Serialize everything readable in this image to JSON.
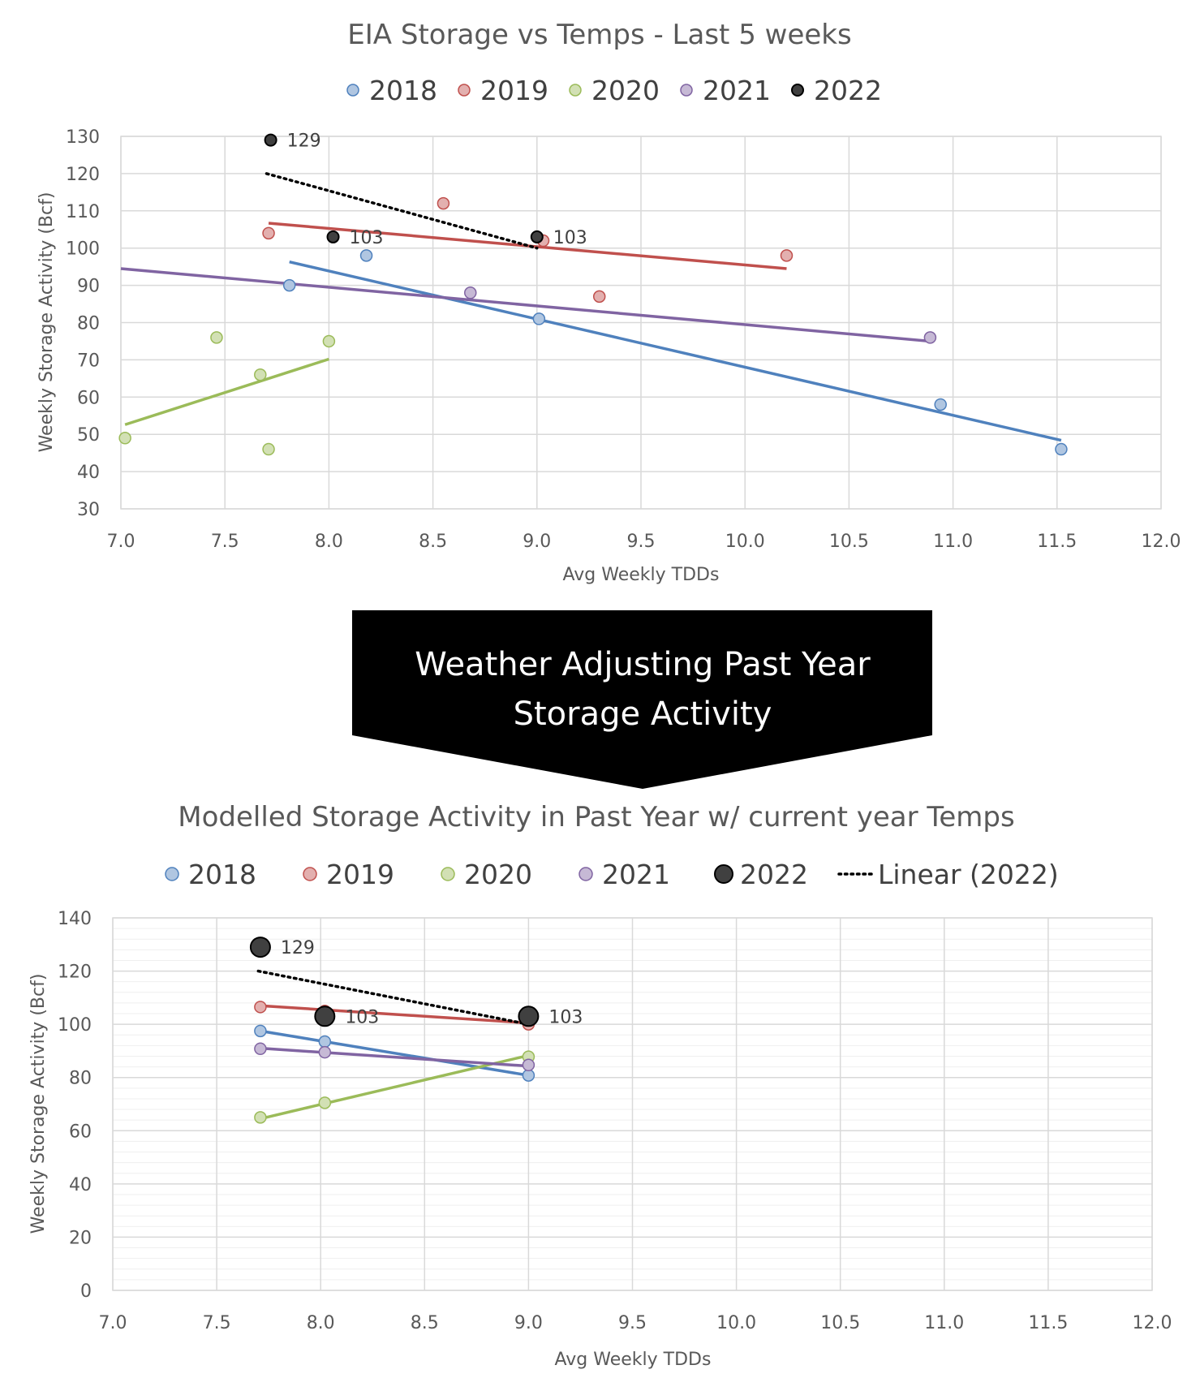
{
  "colors": {
    "2018": "#4f81bd",
    "2019": "#c0504d",
    "2020": "#9bbb59",
    "2021": "#8064a2",
    "2022": "#262626",
    "grid": "#d9d9d9",
    "minor_grid": "#efefef",
    "banner": "#000000"
  },
  "banner": {
    "line1": "Weather Adjusting Past Year",
    "line2": "Storage Activity"
  },
  "chart_data": [
    {
      "type": "scatter",
      "title": "EIA Storage vs Temps - Last 5 weeks",
      "xlabel": "Avg Weekly TDDs",
      "ylabel": "Weekly Storage  Activity (Bcf)",
      "xlim": [
        7.0,
        12.0
      ],
      "ylim": [
        30,
        130
      ],
      "x_ticks": [
        "7.0",
        "7.5",
        "8.0",
        "8.5",
        "9.0",
        "9.5",
        "10.0",
        "10.5",
        "11.0",
        "11.5",
        "12.0"
      ],
      "y_ticks": [
        "30",
        "40",
        "50",
        "60",
        "70",
        "80",
        "90",
        "100",
        "110",
        "120",
        "130"
      ],
      "grid": true,
      "legend": "top-center",
      "legend_entries": [
        "2018",
        "2019",
        "2020",
        "2021",
        "2022"
      ],
      "series": [
        {
          "name": "2018",
          "points": [
            [
              7.81,
              90
            ],
            [
              8.18,
              98
            ],
            [
              9.01,
              81
            ],
            [
              10.94,
              58
            ],
            [
              11.52,
              46
            ]
          ],
          "trend": [
            [
              7.81,
              96.3
            ],
            [
              11.52,
              48.4
            ]
          ]
        },
        {
          "name": "2019",
          "points": [
            [
              7.71,
              104
            ],
            [
              8.55,
              112
            ],
            [
              9.03,
              102
            ],
            [
              9.3,
              87
            ],
            [
              10.2,
              98
            ]
          ],
          "trend": [
            [
              7.71,
              106.7
            ],
            [
              10.2,
              94.5
            ]
          ]
        },
        {
          "name": "2020",
          "points": [
            [
              7.02,
              49
            ],
            [
              7.46,
              76
            ],
            [
              7.67,
              66
            ],
            [
              7.71,
              46
            ],
            [
              8.0,
              75
            ]
          ],
          "trend": [
            [
              7.02,
              52.6
            ],
            [
              8.0,
              70.2
            ]
          ]
        },
        {
          "name": "2021",
          "points": [
            [
              8.68,
              88
            ],
            [
              10.89,
              76
            ]
          ],
          "trend": [
            [
              7.0,
              94.5
            ],
            [
              10.89,
              75.0
            ]
          ]
        },
        {
          "name": "2022",
          "points": [
            [
              7.72,
              129
            ],
            [
              8.02,
              103
            ],
            [
              9.0,
              103
            ]
          ],
          "labels": [
            "129",
            "103",
            "103"
          ],
          "trend": [
            [
              7.7,
              120.0
            ],
            [
              9.0,
              100.0
            ]
          ],
          "trend_style": "dotted"
        }
      ]
    },
    {
      "type": "scatter",
      "title": "Modelled Storage Activity in Past Year w/ current year Temps",
      "xlabel": "Avg Weekly TDDs",
      "ylabel": "Weekly Storage  Activity (Bcf)",
      "xlim": [
        7.0,
        12.0
      ],
      "ylim": [
        0,
        140
      ],
      "x_ticks": [
        "7.0",
        "7.5",
        "8.0",
        "8.5",
        "9.0",
        "9.5",
        "10.0",
        "10.5",
        "11.0",
        "11.5",
        "12.0"
      ],
      "y_ticks": [
        "0",
        "20",
        "40",
        "60",
        "80",
        "100",
        "120",
        "140"
      ],
      "grid": true,
      "legend": "top-center",
      "legend_entries": [
        "2018",
        "2019",
        "2020",
        "2021",
        "2022",
        "Linear (2022)"
      ],
      "series": [
        {
          "name": "2018",
          "points": [
            [
              7.71,
              97.5
            ],
            [
              8.02,
              93.5
            ],
            [
              9.0,
              80.8
            ]
          ],
          "trend": [
            [
              7.71,
              97.5
            ],
            [
              9.0,
              80.8
            ]
          ]
        },
        {
          "name": "2019",
          "points": [
            [
              7.71,
              106.5
            ],
            [
              8.02,
              105.0
            ],
            [
              9.0,
              100.0
            ]
          ],
          "trend": [
            [
              7.71,
              107.0
            ],
            [
              9.0,
              100.5
            ]
          ]
        },
        {
          "name": "2020",
          "points": [
            [
              7.71,
              65.0
            ],
            [
              8.02,
              70.5
            ],
            [
              9.0,
              87.8
            ]
          ],
          "trend": [
            [
              7.71,
              64.5
            ],
            [
              9.0,
              88.3
            ]
          ]
        },
        {
          "name": "2021",
          "points": [
            [
              7.71,
              90.8
            ],
            [
              8.02,
              89.5
            ],
            [
              9.0,
              84.7
            ]
          ],
          "trend": [
            [
              7.71,
              91.0
            ],
            [
              9.0,
              84.3
            ]
          ]
        },
        {
          "name": "2022",
          "points": [
            [
              7.71,
              129
            ],
            [
              8.02,
              103
            ],
            [
              9.0,
              103
            ]
          ],
          "labels": [
            "129",
            "103",
            "103"
          ],
          "trend": [
            [
              7.7,
              120.0
            ],
            [
              9.0,
              100.0
            ]
          ],
          "trend_style": "dotted"
        }
      ]
    }
  ]
}
